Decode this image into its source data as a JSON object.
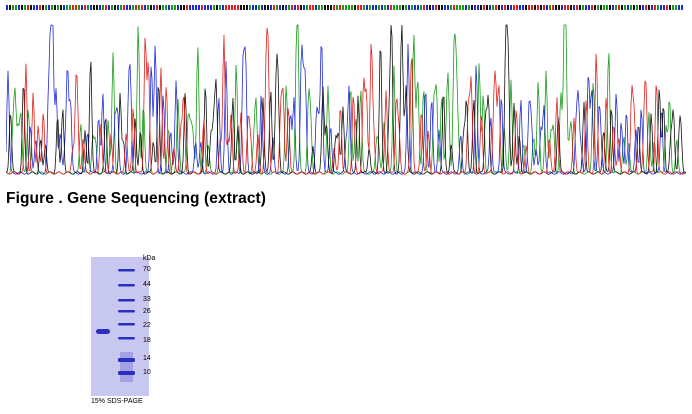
{
  "figure_caption": "Figure . Gene Sequencing (extract)",
  "sequencing": {
    "base_colors": {
      "A": "#1a9c1a",
      "C": "#1f2ad6",
      "G": "#111111",
      "T": "#e0201b"
    }
  },
  "gel": {
    "unit_label": "kDa",
    "markers": [
      "70",
      "44",
      "33",
      "26",
      "22",
      "18",
      "14",
      "10"
    ],
    "caption": "15% SDS-PAGE",
    "background_color": "#c8c7ef",
    "band_color": "#2a2fbe"
  }
}
